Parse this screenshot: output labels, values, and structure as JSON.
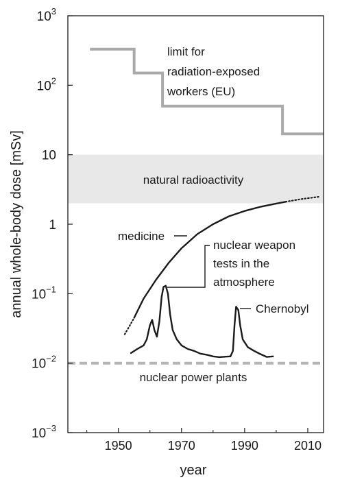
{
  "chart_data": {
    "type": "line",
    "xlabel": "year",
    "ylabel": "annual whole-body dose [mSv]",
    "xlim": [
      1934,
      2015
    ],
    "ylim": [
      0.001,
      1000
    ],
    "yscale": "log",
    "x_ticks": [
      1950,
      1970,
      1990,
      2010
    ],
    "x_tick_labels": [
      "1950",
      "1970",
      "1990",
      "2010"
    ],
    "y_ticks": [
      {
        "value": 1000,
        "base": "10",
        "exp": "3"
      },
      {
        "value": 100,
        "base": "10",
        "exp": "2"
      },
      {
        "value": 10,
        "base": "10",
        "exp": ""
      },
      {
        "value": 1,
        "base": "1",
        "exp": ""
      },
      {
        "value": 0.1,
        "base": "10",
        "exp": "−1"
      },
      {
        "value": 0.01,
        "base": "10",
        "exp": "−2"
      },
      {
        "value": 0.001,
        "base": "10",
        "exp": "−3"
      }
    ],
    "grid": false,
    "band": {
      "label": "natural radioactivity",
      "y_low": 2.0,
      "y_high": 10,
      "color": "#e8e8e8"
    },
    "series": [
      {
        "key": "limit",
        "color": "#aaaaaa",
        "style": "step",
        "points": [
          [
            1941,
            330
          ],
          [
            1955,
            330
          ],
          [
            1955,
            150
          ],
          [
            1964,
            150
          ],
          [
            1964,
            50
          ],
          [
            2002,
            50
          ],
          [
            2002,
            20
          ],
          [
            2015,
            20
          ]
        ]
      },
      {
        "key": "medicine",
        "color": "#1a1a1a",
        "style": "solid",
        "points": [
          [
            1955,
            0.045
          ],
          [
            1958,
            0.085
          ],
          [
            1962,
            0.16
          ],
          [
            1966,
            0.28
          ],
          [
            1970,
            0.45
          ],
          [
            1975,
            0.72
          ],
          [
            1980,
            1.0
          ],
          [
            1985,
            1.3
          ],
          [
            1990,
            1.55
          ],
          [
            1995,
            1.78
          ],
          [
            2000,
            1.98
          ],
          [
            2003,
            2.1
          ]
        ]
      },
      {
        "key": "medicine-dotted-start",
        "color": "#1a1a1a",
        "style": "dotted",
        "points": [
          [
            1952,
            0.026
          ],
          [
            1953.5,
            0.034
          ],
          [
            1955,
            0.045
          ]
        ]
      },
      {
        "key": "medicine-dotted-end",
        "color": "#1a1a1a",
        "style": "dotted",
        "points": [
          [
            2003,
            2.1
          ],
          [
            2008,
            2.3
          ],
          [
            2014,
            2.5
          ]
        ]
      },
      {
        "key": "weapon-tests",
        "color": "#1a1a1a",
        "style": "solid",
        "points": [
          [
            1954,
            0.014
          ],
          [
            1956,
            0.016
          ],
          [
            1958,
            0.018
          ],
          [
            1959,
            0.022
          ],
          [
            1960,
            0.035
          ],
          [
            1960.7,
            0.042
          ],
          [
            1961.4,
            0.03
          ],
          [
            1962.2,
            0.024
          ],
          [
            1963,
            0.04
          ],
          [
            1963.7,
            0.09
          ],
          [
            1964.3,
            0.125
          ],
          [
            1965,
            0.13
          ],
          [
            1965.7,
            0.1
          ],
          [
            1966.4,
            0.05
          ],
          [
            1967.2,
            0.03
          ],
          [
            1968.5,
            0.022
          ],
          [
            1970,
            0.018
          ],
          [
            1972,
            0.016
          ],
          [
            1974,
            0.015
          ],
          [
            1976,
            0.0137
          ],
          [
            1978,
            0.0132
          ],
          [
            1980,
            0.0125
          ],
          [
            1982,
            0.0122
          ],
          [
            1984,
            0.0124
          ],
          [
            1985.5,
            0.0125
          ]
        ]
      },
      {
        "key": "chernobyl",
        "color": "#1a1a1a",
        "style": "solid",
        "points": [
          [
            1985.5,
            0.0125
          ],
          [
            1986.3,
            0.015
          ],
          [
            1986.8,
            0.035
          ],
          [
            1987.3,
            0.065
          ],
          [
            1988,
            0.058
          ],
          [
            1988.6,
            0.035
          ],
          [
            1989.4,
            0.022
          ],
          [
            1991,
            0.017
          ],
          [
            1993,
            0.015
          ],
          [
            1995,
            0.0135
          ],
          [
            1997,
            0.0123
          ],
          [
            1999,
            0.0125
          ]
        ]
      },
      {
        "key": "nuclear-power",
        "color": "#b5b5b5",
        "style": "dashed",
        "points": [
          [
            1934,
            0.01
          ],
          [
            2015,
            0.01
          ]
        ]
      }
    ],
    "annotations": {
      "limit_lines": [
        "limit for",
        "radiation-exposed",
        "workers (EU)"
      ],
      "medicine": "medicine",
      "weapon_lines": [
        "nuclear weapon",
        "tests in the",
        "atmosphere"
      ],
      "chernobyl": "Chernobyl",
      "nuclear_power": "nuclear power plants"
    }
  }
}
